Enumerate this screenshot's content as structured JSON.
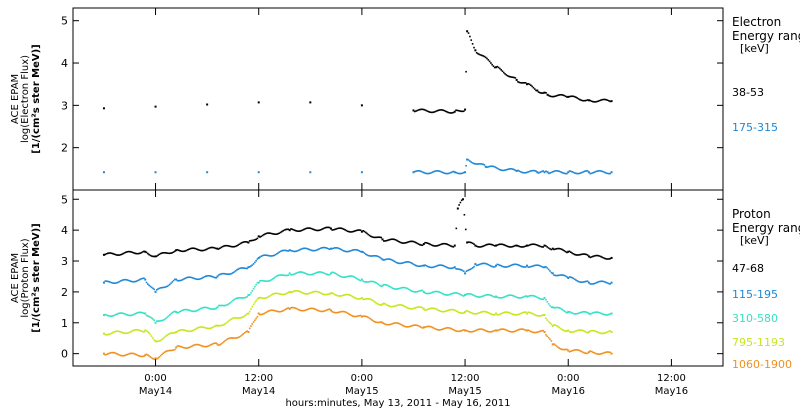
{
  "chart_data": [
    {
      "type": "scatter",
      "ylabel": [
        "ACE EPAM",
        "log(Electron Flux)",
        "[1/(cm²s ster MeV)]"
      ],
      "ylim": [
        1.0,
        5.3
      ],
      "yticks": [
        2,
        3,
        4,
        5
      ],
      "legend": {
        "title": [
          "Electron",
          "Energy range",
          "[keV]"
        ],
        "placement": "right"
      },
      "series": [
        {
          "name": "38-53",
          "color": "#000000",
          "x": [
            -0.5,
            0.0,
            0.5,
            1.0,
            1.5,
            2.0,
            2.5,
            2.9,
            3.0,
            3.02,
            3.1,
            3.3,
            3.5,
            3.6,
            3.7,
            3.77,
            3.8,
            4.0,
            4.2,
            4.42
          ],
          "y": [
            2.93,
            2.97,
            3.02,
            3.07,
            3.07,
            3.0,
            2.88,
            2.85,
            2.9,
            4.75,
            4.3,
            3.9,
            3.6,
            3.5,
            3.35,
            3.3,
            3.25,
            3.2,
            3.12,
            3.1
          ]
        },
        {
          "name": "175-315",
          "color": "#1e88d6",
          "x": [
            -0.5,
            0.0,
            0.5,
            1.0,
            1.5,
            2.0,
            2.5,
            2.9,
            3.0,
            3.02,
            3.2,
            3.5,
            3.7,
            3.77,
            3.8,
            4.0,
            4.2,
            4.42
          ],
          "y": [
            1.42,
            1.42,
            1.42,
            1.42,
            1.42,
            1.42,
            1.42,
            1.42,
            1.42,
            1.72,
            1.55,
            1.45,
            1.42,
            1.42,
            1.42,
            1.42,
            1.42,
            1.42
          ]
        }
      ]
    },
    {
      "type": "scatter",
      "ylabel": [
        "ACE EPAM",
        "log(Proton Flux)",
        "[1/(cm²s ster MeV)]"
      ],
      "ylim": [
        -0.4,
        5.3
      ],
      "yticks": [
        0,
        1,
        2,
        3,
        4,
        5
      ],
      "legend": {
        "title": [
          "Proton",
          "Energy range",
          "[keV]"
        ],
        "placement": "right"
      },
      "series": [
        {
          "name": "47-68",
          "color": "#000000",
          "x": [
            -0.5,
            -0.1,
            0.0,
            0.2,
            0.6,
            0.9,
            1.0,
            1.3,
            1.7,
            2.0,
            2.2,
            2.6,
            2.9,
            2.93,
            2.98,
            3.02,
            3.1,
            3.3,
            3.5,
            3.6,
            3.77,
            3.85,
            4.0,
            4.2,
            4.42
          ],
          "y": [
            3.2,
            3.3,
            3.15,
            3.35,
            3.4,
            3.6,
            3.8,
            4.0,
            4.05,
            3.95,
            3.7,
            3.55,
            3.5,
            4.7,
            5.0,
            3.6,
            3.5,
            3.5,
            3.5,
            3.5,
            3.5,
            3.4,
            3.3,
            3.15,
            3.1
          ]
        },
        {
          "name": "115-195",
          "color": "#1e88d6",
          "x": [
            -0.5,
            -0.1,
            0.0,
            0.2,
            0.6,
            0.9,
            1.0,
            1.3,
            1.7,
            2.0,
            2.2,
            2.6,
            2.9,
            3.0,
            3.1,
            3.3,
            3.6,
            3.77,
            3.85,
            4.0,
            4.2,
            4.42
          ],
          "y": [
            2.3,
            2.4,
            2.0,
            2.4,
            2.5,
            2.8,
            3.1,
            3.35,
            3.4,
            3.3,
            3.05,
            2.85,
            2.8,
            2.6,
            2.9,
            2.85,
            2.85,
            2.8,
            2.6,
            2.45,
            2.3,
            2.3
          ]
        },
        {
          "name": "310-580",
          "color": "#35e0c6",
          "x": [
            -0.5,
            -0.1,
            0.0,
            0.2,
            0.6,
            0.9,
            1.0,
            1.3,
            1.7,
            2.0,
            2.2,
            2.6,
            3.0,
            3.3,
            3.6,
            3.77,
            3.85,
            4.0,
            4.2,
            4.42
          ],
          "y": [
            1.25,
            1.3,
            1.0,
            1.35,
            1.5,
            1.9,
            2.3,
            2.6,
            2.6,
            2.4,
            2.2,
            2.0,
            1.9,
            1.85,
            1.85,
            1.8,
            1.5,
            1.35,
            1.3,
            1.3
          ]
        },
        {
          "name": "795-1193",
          "color": "#c6e61e",
          "x": [
            -0.5,
            -0.1,
            0.0,
            0.2,
            0.6,
            0.9,
            1.0,
            1.3,
            1.7,
            2.0,
            2.2,
            2.6,
            3.0,
            3.3,
            3.6,
            3.77,
            3.85,
            4.0,
            4.2,
            4.42
          ],
          "y": [
            0.65,
            0.75,
            0.4,
            0.7,
            0.9,
            1.3,
            1.8,
            2.0,
            1.95,
            1.8,
            1.6,
            1.45,
            1.35,
            1.3,
            1.3,
            1.25,
            0.9,
            0.75,
            0.7,
            0.7
          ]
        },
        {
          "name": "1060-1900",
          "color": "#f0901e",
          "x": [
            -0.5,
            -0.1,
            0.0,
            0.2,
            0.6,
            0.9,
            1.0,
            1.3,
            1.7,
            2.0,
            2.2,
            2.6,
            3.0,
            3.3,
            3.6,
            3.77,
            3.85,
            4.0,
            4.2,
            4.42
          ],
          "y": [
            0.0,
            -0.05,
            -0.15,
            0.2,
            0.3,
            0.7,
            1.3,
            1.45,
            1.4,
            1.2,
            1.0,
            0.85,
            0.75,
            0.75,
            0.75,
            0.7,
            0.3,
            0.1,
            0.05,
            0.0
          ]
        }
      ]
    }
  ],
  "x_axis": {
    "xlim": [
      -0.8,
      5.5
    ],
    "ticks": [
      {
        "x": 0,
        "time": "0:00",
        "date": "May14"
      },
      {
        "x": 1,
        "time": "12:00",
        "date": "May14"
      },
      {
        "x": 2,
        "time": "0:00",
        "date": "May15"
      },
      {
        "x": 3,
        "time": "12:00",
        "date": "May15"
      },
      {
        "x": 4,
        "time": "0:00",
        "date": "May16"
      },
      {
        "x": 5,
        "time": "12:00",
        "date": "May16"
      }
    ],
    "xlabel": "hours:minutes, May 13, 2011 - May 16, 2011"
  }
}
